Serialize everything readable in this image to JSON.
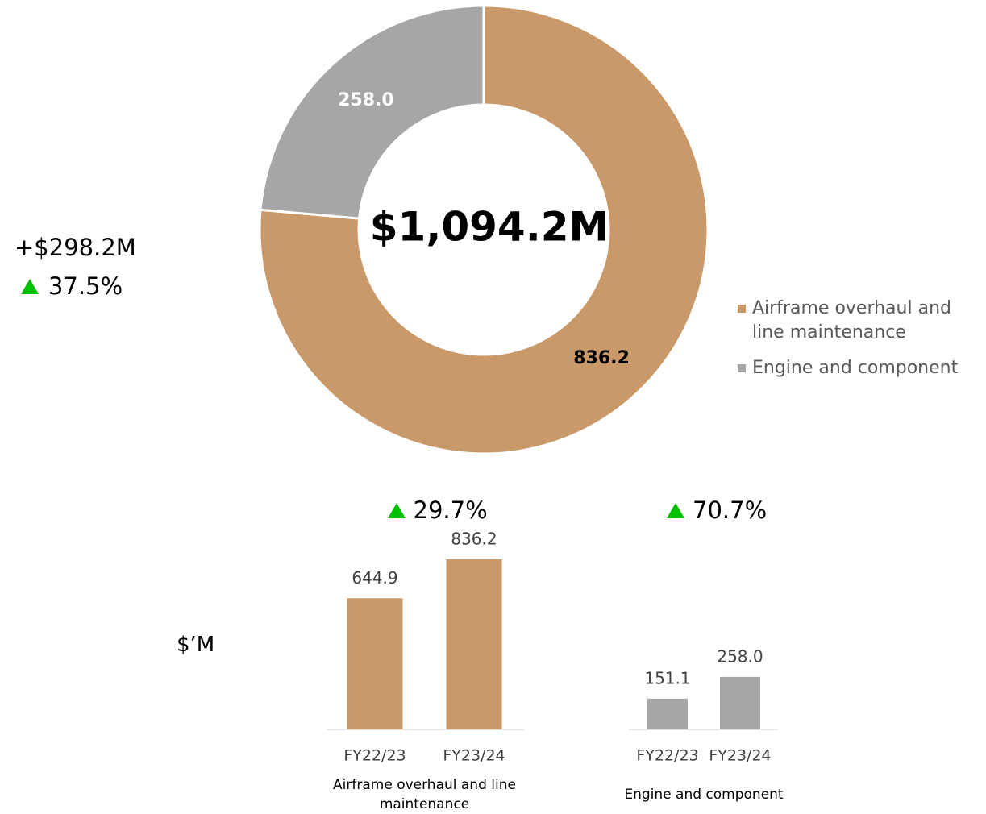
{
  "chart_data": [
    {
      "type": "donut",
      "center_label": "$1,094.2M",
      "categories": [
        "Airframe overhaul and line maintenance",
        "Engine and component"
      ],
      "values": [
        836.2,
        258.0
      ],
      "value_labels": [
        "836.2",
        "258.0"
      ],
      "colors": [
        "#c9996a",
        "#a6a6a6"
      ],
      "label_colors": [
        "#000000",
        "#ffffff"
      ],
      "legend": "right"
    },
    {
      "type": "bar",
      "title": "Airframe overhaul and line maintenance",
      "categories": [
        "FY22/23",
        "FY23/24"
      ],
      "values": [
        644.9,
        836.2
      ],
      "value_labels": [
        "644.9",
        "836.2"
      ],
      "color": "#c9996a",
      "change": "29.7%"
    },
    {
      "type": "bar",
      "title": "Engine and component",
      "categories": [
        "FY22/23",
        "FY23/24"
      ],
      "values": [
        151.1,
        258.0
      ],
      "value_labels": [
        "151.1",
        "258.0"
      ],
      "color": "#a6a6a6",
      "change": "70.7%"
    }
  ],
  "summary": {
    "change_amount": "+$298.2M",
    "change_percent": "37.5%"
  },
  "unit_label": "$’M"
}
